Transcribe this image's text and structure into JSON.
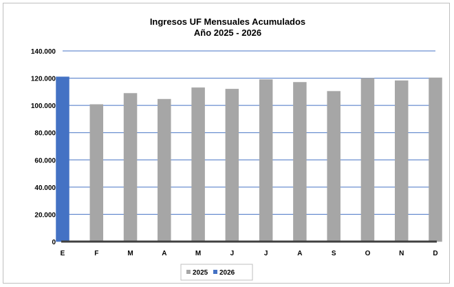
{
  "chart_data": {
    "type": "bar",
    "title": [
      "Ingresos UF Mensuales Acumulados",
      "Año 2025 - 2026"
    ],
    "categories": [
      "E",
      "F",
      "M",
      "A",
      "M",
      "J",
      "J",
      "A",
      "S",
      "O",
      "N",
      "D"
    ],
    "series": [
      {
        "name": "2025",
        "color": "#a6a6a6",
        "values": [
          null,
          100700,
          108900,
          104600,
          113000,
          112000,
          119000,
          117000,
          110400,
          120000,
          118200,
          120300
        ]
      },
      {
        "name": "2026",
        "color": "#4472c4",
        "values": [
          121000,
          null,
          null,
          null,
          null,
          null,
          null,
          null,
          null,
          null,
          null,
          null
        ]
      }
    ],
    "yticks": [
      "0",
      "20.000",
      "40.000",
      "60.000",
      "80.000",
      "100.000",
      "120.000",
      "140.000"
    ],
    "ylim": [
      0,
      140000
    ],
    "grid": true,
    "gridline_color": "#4472c4",
    "legend_position": "bottom"
  }
}
